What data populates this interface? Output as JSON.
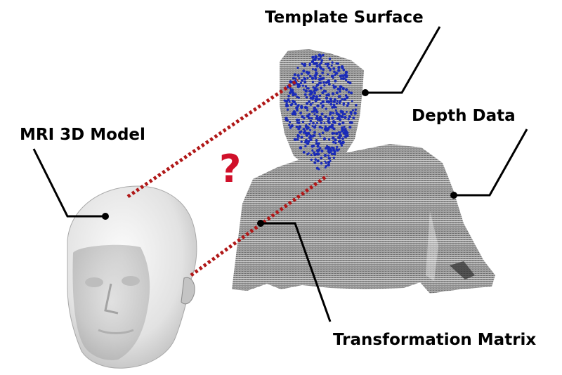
{
  "labels": {
    "template_surface": "Template Surface",
    "depth_data": "Depth Data",
    "mri_model": "MRI 3D Model",
    "transformation_matrix": "Transformation Matrix",
    "question_mark": "?"
  },
  "colors": {
    "dotted_lines": "#b01818",
    "question_mark": "#d0102a",
    "template_points": "#1a2bb8",
    "depth_data": "#8c8c8c",
    "mri_model": "#e4e4e4",
    "leader_lines": "#000000"
  }
}
